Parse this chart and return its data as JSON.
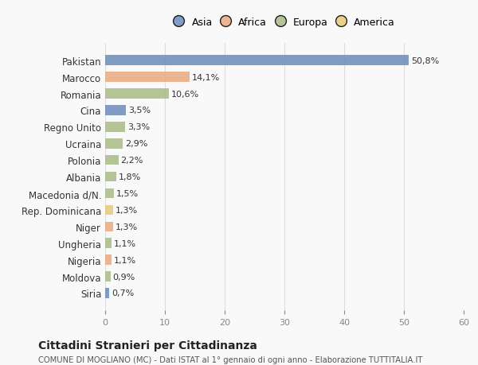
{
  "categories": [
    "Pakistan",
    "Marocco",
    "Romania",
    "Cina",
    "Regno Unito",
    "Ucraina",
    "Polonia",
    "Albania",
    "Macedonia d/N.",
    "Rep. Dominicana",
    "Niger",
    "Ungheria",
    "Nigeria",
    "Moldova",
    "Siria"
  ],
  "values": [
    50.8,
    14.1,
    10.6,
    3.5,
    3.3,
    2.9,
    2.2,
    1.8,
    1.5,
    1.3,
    1.3,
    1.1,
    1.1,
    0.9,
    0.7
  ],
  "labels": [
    "50,8%",
    "14,1%",
    "10,6%",
    "3,5%",
    "3,3%",
    "2,9%",
    "2,2%",
    "1,8%",
    "1,5%",
    "1,3%",
    "1,3%",
    "1,1%",
    "1,1%",
    "0,9%",
    "0,7%"
  ],
  "colors": [
    "#6b8cba",
    "#e8a97e",
    "#a8bb85",
    "#6b8cba",
    "#a8bb85",
    "#a8bb85",
    "#a8bb85",
    "#a8bb85",
    "#a8bb85",
    "#e8c97e",
    "#e8a97e",
    "#a8bb85",
    "#e8a97e",
    "#a8bb85",
    "#6b8cba"
  ],
  "legend": [
    {
      "label": "Asia",
      "color": "#6b8cba"
    },
    {
      "label": "Africa",
      "color": "#e8a97e"
    },
    {
      "label": "Europa",
      "color": "#a8bb85"
    },
    {
      "label": "America",
      "color": "#e8c97e"
    }
  ],
  "title": "Cittadini Stranieri per Cittadinanza",
  "subtitle": "COMUNE DI MOGLIANO (MC) - Dati ISTAT al 1° gennaio di ogni anno - Elaborazione TUTTITALIA.IT",
  "xlim": [
    0,
    60
  ],
  "xticks": [
    0,
    10,
    20,
    30,
    40,
    50,
    60
  ],
  "background_color": "#f9f9f9",
  "bar_height": 0.6,
  "grid_color": "#dddddd"
}
